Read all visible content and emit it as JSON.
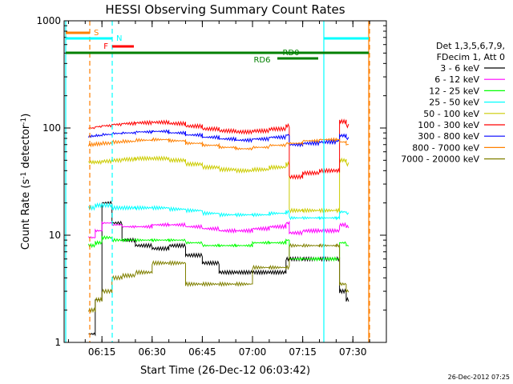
{
  "chart_data": {
    "type": "line",
    "title": "HESSI Observing Summary Count Rates",
    "xlabel": "Start Time (26-Dec-12 06:03:42)",
    "ylabel": "Count Rate (s⁻¹ detector⁻¹)",
    "ylabel_main": "Count Rate (s",
    "ylabel_sup1": "-1",
    "ylabel_mid": " detector",
    "ylabel_sup2": "-1",
    "ylabel_end": ")",
    "yscale": "log",
    "xlim": [
      "06:03:42",
      "07:40:00"
    ],
    "ylim": [
      1,
      1000
    ],
    "xticks": [
      "06:15",
      "06:30",
      "06:45",
      "07:00",
      "07:15",
      "07:30"
    ],
    "yticks": [
      "1",
      "10",
      "100",
      "1000"
    ],
    "legend_header": [
      "Det 1,3,5,6,7,9,",
      "FDecim 1, Att 0"
    ],
    "legend_position": "right",
    "footer": "26-Dec-2012 07:25",
    "x_time": [
      "06:11",
      "06:13",
      "06:15",
      "06:18",
      "06:21",
      "06:25",
      "06:30",
      "06:35",
      "06:40",
      "06:45",
      "06:50",
      "06:55",
      "07:00",
      "07:05",
      "07:10",
      "07:11",
      "07:15",
      "07:20",
      "07:25",
      "07:26",
      "07:28"
    ],
    "series": [
      {
        "name": "3 - 6 keV",
        "color": "#000000",
        "values": [
          1.2,
          2.5,
          20,
          13,
          9,
          8,
          7.5,
          8,
          6.5,
          5.5,
          4.5,
          4.5,
          4.5,
          4.5,
          6,
          6,
          6,
          6,
          6,
          3,
          2.5
        ]
      },
      {
        "name": "6 - 12 keV",
        "color": "#ff00ff",
        "values": [
          9.5,
          11,
          13,
          12.5,
          12,
          12,
          12.5,
          12.5,
          12,
          11.5,
          11,
          11,
          11.5,
          12,
          13,
          10.5,
          11,
          11,
          11,
          12.5,
          12
        ]
      },
      {
        "name": "12 - 25 keV",
        "color": "#00ff00",
        "values": [
          8,
          8.5,
          9.5,
          9,
          9,
          9,
          9,
          9,
          8.5,
          8,
          8,
          8,
          8.5,
          8.5,
          9,
          6,
          6,
          6,
          6,
          8.5,
          8
        ]
      },
      {
        "name": "25 - 50 keV",
        "color": "#00ffff",
        "values": [
          18,
          19,
          19,
          18,
          18,
          18,
          18,
          17.5,
          17,
          16,
          15.5,
          15.5,
          15.5,
          16,
          16.5,
          14.5,
          14.5,
          14.5,
          14.5,
          16.5,
          16
        ]
      },
      {
        "name": "50 - 100 keV",
        "color": "#cccc00",
        "values": [
          48,
          48,
          49,
          50,
          51,
          52,
          52,
          50,
          46,
          43,
          41,
          40,
          41,
          43,
          46,
          17,
          17,
          17,
          17,
          50,
          46
        ]
      },
      {
        "name": "100 - 300 keV",
        "color": "#ff0000",
        "values": [
          100,
          103,
          105,
          108,
          110,
          112,
          113,
          110,
          104,
          98,
          94,
          92,
          94,
          98,
          105,
          35,
          38,
          40,
          40,
          115,
          105
        ]
      },
      {
        "name": "300 - 800 keV",
        "color": "#0000ff",
        "values": [
          84,
          85,
          87,
          89,
          90,
          92,
          93,
          90,
          86,
          82,
          79,
          77,
          79,
          82,
          86,
          70,
          72,
          74,
          76,
          85,
          80
        ]
      },
      {
        "name": "800 - 7000 keV",
        "color": "#ff8000",
        "values": [
          70,
          71,
          72,
          74,
          75,
          77,
          78,
          76,
          72,
          69,
          66,
          64,
          66,
          69,
          72,
          72,
          76,
          78,
          78,
          74,
          70
        ]
      },
      {
        "name": "7000 - 20000 keV",
        "color": "#808000",
        "values": [
          2,
          2.5,
          3,
          4,
          4.2,
          4.5,
          5.5,
          5.5,
          3.5,
          3.5,
          3.5,
          3.5,
          5,
          5,
          5,
          8,
          8,
          8,
          8,
          3.5,
          3
        ]
      }
    ],
    "annotations": [
      {
        "label": "S",
        "color": "#ff8000"
      },
      {
        "label": "N",
        "color": "#00ffff"
      },
      {
        "label": "F",
        "color": "#ff0000"
      },
      {
        "label": "RD0",
        "color": "#008000"
      },
      {
        "label": "RD6",
        "color": "#008000"
      }
    ]
  }
}
